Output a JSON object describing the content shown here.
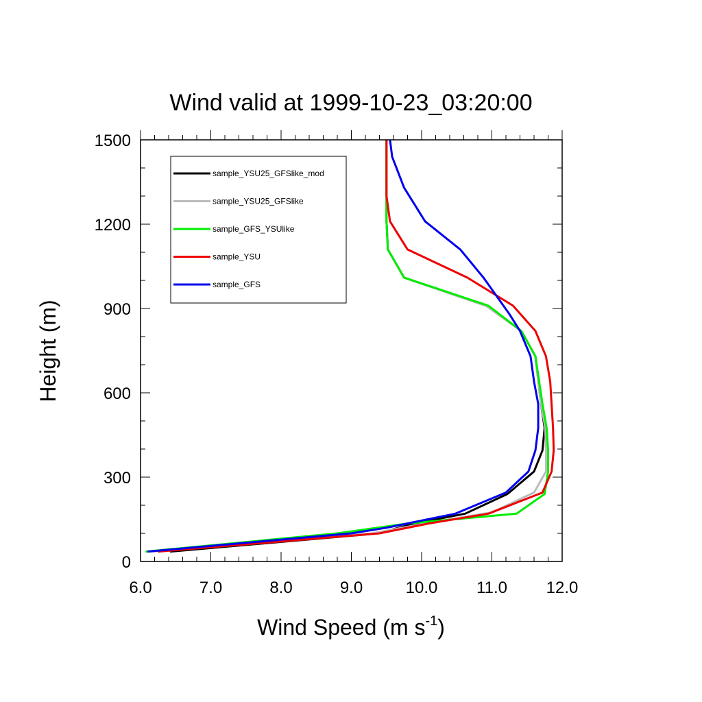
{
  "chart_data": {
    "type": "line",
    "title": "Wind valid at 1999-10-23_03:20:00",
    "xlabel": "Wind Speed (m s",
    "xlabel_sup": "-1",
    "xlabel_end": ")",
    "ylabel": "Height (m)",
    "xlim": [
      6.0,
      12.0
    ],
    "ylim": [
      0,
      1500
    ],
    "x_ticks": [
      6.0,
      7.0,
      8.0,
      9.0,
      10.0,
      11.0,
      12.0
    ],
    "x_tick_labels": [
      "6.0",
      "7.0",
      "8.0",
      "9.0",
      "10.0",
      "11.0",
      "12.0"
    ],
    "y_ticks": [
      0,
      300,
      600,
      900,
      1200,
      1500
    ],
    "y_tick_labels": [
      "0",
      "300",
      "600",
      "900",
      "1200",
      "1500"
    ],
    "grid": false,
    "legend_position": "top-left",
    "series": [
      {
        "name": "sample_YSU25_GFSlike_mod",
        "color": "#000000",
        "x": [
          6.42,
          9.38,
          9.9,
          10.62,
          11.22,
          11.6,
          11.72,
          11.75,
          11.7,
          11.62,
          11.42,
          10.92,
          9.75,
          9.52,
          9.5,
          9.5
        ],
        "y": [
          35,
          100,
          135,
          170,
          240,
          320,
          395,
          475,
          560,
          730,
          820,
          910,
          1010,
          1110,
          1210,
          1500
        ]
      },
      {
        "name": "sample_YSU25_GFSlike",
        "color": "#bbbbbb",
        "x": [
          6.15,
          9.3,
          10.05,
          11.0,
          11.6,
          11.77,
          11.77,
          11.76,
          11.7,
          11.62,
          11.42,
          10.92,
          9.75,
          9.52,
          9.5,
          9.5
        ],
        "y": [
          35,
          100,
          135,
          175,
          245,
          320,
          395,
          475,
          560,
          730,
          820,
          910,
          1010,
          1110,
          1210,
          1500
        ]
      },
      {
        "name": "sample_GFS_YSUlike",
        "color": "#00ee00",
        "x": [
          6.07,
          8.8,
          9.8,
          11.35,
          11.75,
          11.8,
          11.8,
          11.78,
          11.72,
          11.62,
          11.42,
          10.95,
          9.75,
          9.52,
          9.5,
          9.5
        ],
        "y": [
          35,
          100,
          135,
          170,
          240,
          320,
          395,
          475,
          560,
          730,
          820,
          910,
          1010,
          1110,
          1210,
          1500
        ]
      },
      {
        "name": "sample_YSU",
        "color": "#ee0000",
        "x": [
          6.25,
          9.4,
          10.1,
          10.95,
          11.72,
          11.85,
          11.88,
          11.87,
          11.83,
          11.77,
          11.62,
          11.3,
          10.65,
          9.8,
          9.55,
          9.5,
          9.5
        ],
        "y": [
          35,
          100,
          135,
          170,
          245,
          320,
          395,
          475,
          640,
          730,
          820,
          910,
          1010,
          1110,
          1210,
          1300,
          1500
        ]
      },
      {
        "name": "sample_GFS",
        "color": "#0000ee",
        "x": [
          6.1,
          9.0,
          9.5,
          10.48,
          11.2,
          11.52,
          11.62,
          11.66,
          11.66,
          11.6,
          11.55,
          11.4,
          11.25,
          10.88,
          10.55,
          10.05,
          9.75,
          9.58,
          9.55
        ],
        "y": [
          35,
          100,
          120,
          170,
          245,
          320,
          395,
          475,
          560,
          640,
          730,
          820,
          880,
          1010,
          1110,
          1210,
          1330,
          1440,
          1500
        ]
      }
    ]
  }
}
